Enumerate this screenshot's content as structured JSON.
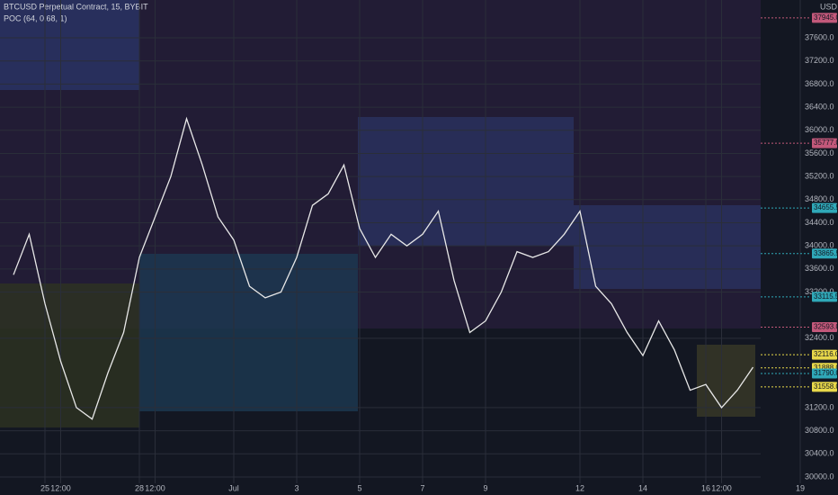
{
  "chart_data": {
    "type": "line",
    "title": "BTCUSD Perpetual Contract, 15, BYBIT",
    "subtitle": "POC (64, 0.68, 1)",
    "y_axis_label": "USD",
    "color": "#e8e8e8",
    "grid": true,
    "categories": [
      null,
      null,
      "25",
      "12:00",
      null,
      null,
      null,
      null,
      "28",
      "12:00",
      null,
      null,
      null,
      null,
      "Jul",
      null,
      null,
      null,
      "3",
      null,
      null,
      null,
      "5",
      null,
      null,
      null,
      "7",
      null,
      null,
      null,
      "9",
      null,
      null,
      null,
      null,
      null,
      "12",
      null,
      null,
      null,
      "14",
      null,
      null,
      null,
      "16",
      "12:00",
      null,
      null,
      null,
      null,
      "19"
    ],
    "values": [
      33500,
      34200,
      33000,
      32000,
      31200,
      31000,
      31800,
      32500,
      33800,
      34500,
      35200,
      36200,
      35400,
      34500,
      34100,
      33300,
      33100,
      33200,
      33800,
      34700,
      34900,
      35400,
      34300,
      33800,
      34200,
      34000,
      34200,
      34600,
      33400,
      32500,
      32700,
      33200,
      33900,
      33800,
      33900,
      34200,
      34600,
      33300,
      33000,
      32500,
      32100,
      32700,
      32200,
      31500,
      31600,
      31200,
      31500,
      31900,
      null,
      null,
      null
    ],
    "ylim": [
      29890,
      38255
    ],
    "yticks": [
      {
        "value": 30000,
        "label": "30000.0"
      },
      {
        "value": 30400,
        "label": "30400.0"
      },
      {
        "value": 30800,
        "label": "30800.0"
      },
      {
        "value": 31200,
        "label": "31200.0"
      },
      {
        "value": 32400,
        "label": "32400.0"
      },
      {
        "value": 33200,
        "label": "33200.0"
      },
      {
        "value": 33600,
        "label": "33600.0"
      },
      {
        "value": 34000,
        "label": "34000.0"
      },
      {
        "value": 34400,
        "label": "34400.0"
      },
      {
        "value": 34800,
        "label": "34800.0"
      },
      {
        "value": 35200,
        "label": "35200.0"
      },
      {
        "value": 35600,
        "label": "35600.0"
      },
      {
        "value": 36000,
        "label": "36000.0"
      },
      {
        "value": 36400,
        "label": "36400.0"
      },
      {
        "value": 36800,
        "label": "36800.0"
      },
      {
        "value": 37200,
        "label": "37200.0"
      },
      {
        "value": 37600,
        "label": "37600.0"
      }
    ],
    "price_labels": [
      {
        "value": 37945,
        "label": "37945.0",
        "color": "#c2587a"
      },
      {
        "value": 35777,
        "label": "35777.0",
        "color": "#c2587a"
      },
      {
        "value": 34655.5,
        "label": "34655.5",
        "color": "#2fa8b8"
      },
      {
        "value": 33865.5,
        "label": "33865.5",
        "color": "#2fa8b8"
      },
      {
        "value": 33115.5,
        "label": "33115.5",
        "color": "#2fa8b8"
      },
      {
        "value": 32593,
        "label": "32593.0",
        "color": "#c2587a"
      },
      {
        "value": 32116,
        "label": "32116.0",
        "color": "#e8d84a"
      },
      {
        "value": 31888,
        "label": "31888.0",
        "color": "#e8d84a"
      },
      {
        "value": 31790,
        "label": "31790.0",
        "color": "#2fa8b8"
      },
      {
        "value": 31558,
        "label": "31558.0",
        "color": "#e8d84a"
      }
    ]
  }
}
